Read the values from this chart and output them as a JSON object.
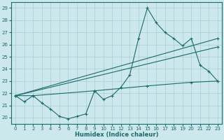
{
  "title": "",
  "xlabel": "Humidex (Indice chaleur)",
  "background_color": "#cce8ed",
  "line_color": "#1a6b6b",
  "grid_color": "#a8cdd4",
  "xlim": [
    -0.5,
    23.5
  ],
  "ylim": [
    19.5,
    29.5
  ],
  "xticks": [
    0,
    1,
    2,
    3,
    4,
    5,
    6,
    7,
    8,
    9,
    10,
    11,
    12,
    13,
    14,
    15,
    16,
    17,
    18,
    19,
    20,
    21,
    22,
    23
  ],
  "yticks": [
    20,
    21,
    22,
    23,
    24,
    25,
    26,
    27,
    28,
    29
  ],
  "series1_x": [
    0,
    1,
    2,
    3,
    4,
    5,
    6,
    7,
    8,
    9,
    10,
    11,
    12,
    13,
    14,
    15,
    16,
    17,
    18,
    19,
    20,
    21,
    22,
    23
  ],
  "series1_y": [
    21.8,
    21.3,
    21.8,
    21.2,
    20.7,
    20.1,
    19.9,
    20.1,
    20.3,
    22.2,
    21.5,
    21.8,
    22.5,
    23.5,
    26.5,
    29.0,
    27.8,
    27.0,
    26.5,
    25.9,
    26.5,
    24.3,
    23.8,
    23.0
  ],
  "series2_x": [
    0,
    23
  ],
  "series2_y": [
    21.8,
    26.5
  ],
  "series3_x": [
    0,
    23
  ],
  "series3_y": [
    21.8,
    25.8
  ],
  "series4_x": [
    0,
    2,
    9,
    15,
    20,
    23
  ],
  "series4_y": [
    21.8,
    21.8,
    22.2,
    22.6,
    22.9,
    23.0
  ]
}
